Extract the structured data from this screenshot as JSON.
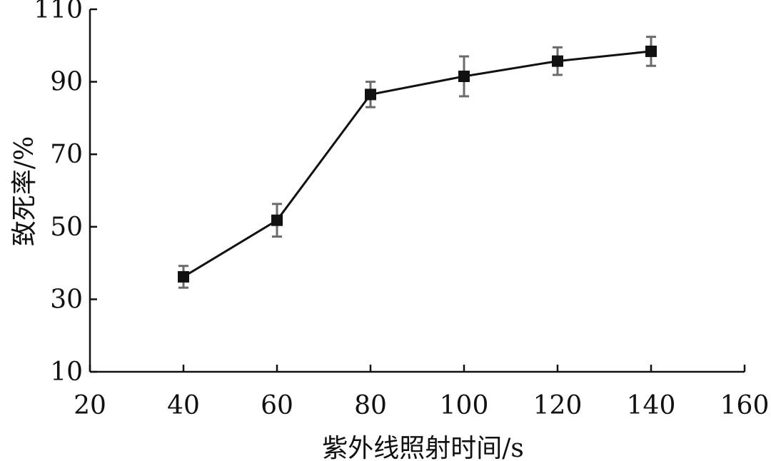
{
  "chart_data": {
    "type": "line",
    "title": "",
    "xlabel": "紫外线照射时间/s",
    "ylabel": "致死率/%",
    "xlim": [
      20,
      160
    ],
    "ylim": [
      10,
      110
    ],
    "xticks": [
      20,
      40,
      60,
      80,
      100,
      120,
      140,
      160
    ],
    "yticks": [
      10,
      30,
      50,
      70,
      90,
      110
    ],
    "grid": false,
    "legend": "none",
    "colors": {
      "line": "#111111",
      "marker": "#111111",
      "error_bar": "#6b6b6b"
    },
    "series": [
      {
        "marker": "square",
        "x": [
          40,
          60,
          80,
          100,
          120,
          140
        ],
        "y": [
          36.2,
          51.8,
          86.5,
          91.5,
          95.7,
          98.4
        ],
        "error": [
          3.0,
          4.5,
          3.5,
          5.5,
          3.8,
          4.0
        ]
      }
    ]
  }
}
